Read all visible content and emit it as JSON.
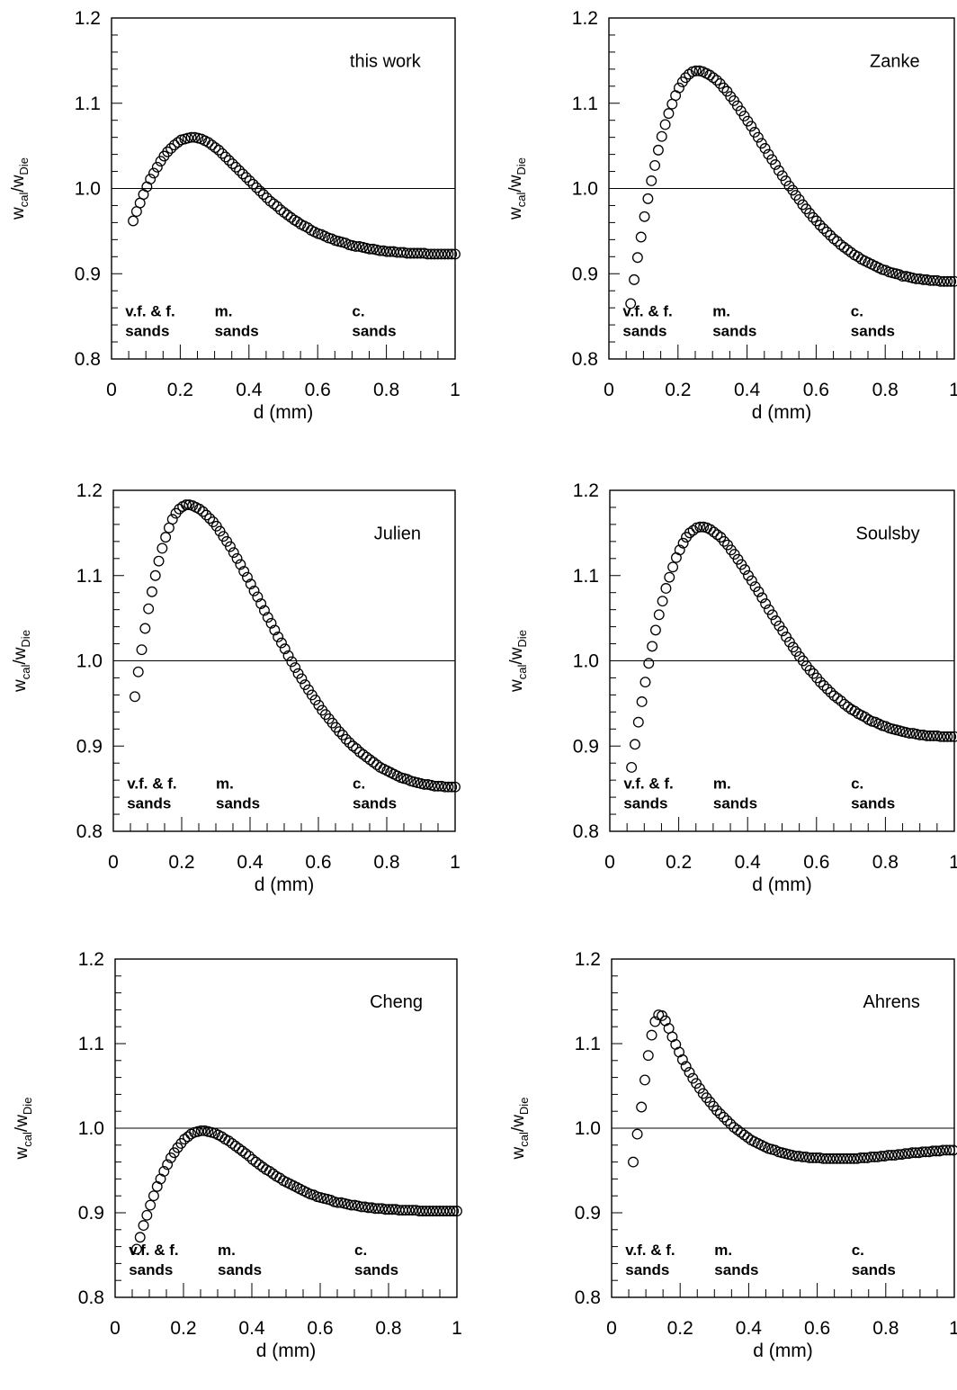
{
  "chart_data": [
    {
      "type": "scatter",
      "title": "this work",
      "xlabel": "d (mm)",
      "ylabel": {
        "base": "w",
        "sub1": "cal",
        "sep": "/w",
        "sub2": "Die"
      },
      "xlim": [
        0,
        1
      ],
      "ylim": [
        0.8,
        1.2
      ],
      "xticks": [
        "0",
        "0.2",
        "0.4",
        "0.6",
        "0.8",
        "1"
      ],
      "yticks": [
        "0.8",
        "0.9",
        "1.0",
        "1.1",
        "1.2"
      ],
      "reference_line_y": 1.0,
      "marker": "open-circle",
      "annotations": [
        {
          "lines": [
            "v.f. & f.",
            "sands"
          ],
          "x": 0.04,
          "y": 0.85
        },
        {
          "lines": [
            "m.",
            "sands"
          ],
          "x": 0.3,
          "y": 0.85
        },
        {
          "lines": [
            "c.",
            "sands"
          ],
          "x": 0.7,
          "y": 0.85
        }
      ],
      "curve": {
        "x0": 0.063,
        "y0": 0.962,
        "xp": 0.235,
        "yp": 1.06,
        "y1": 0.923,
        "k": 2.1
      }
    },
    {
      "type": "scatter",
      "title": "Zanke",
      "xlabel": "d (mm)",
      "ylabel": {
        "base": "w",
        "sub1": "cal",
        "sep": "/w",
        "sub2": "Die"
      },
      "xlim": [
        0,
        1
      ],
      "ylim": [
        0.8,
        1.2
      ],
      "xticks": [
        "0",
        "0.2",
        "0.4",
        "0.6",
        "0.8",
        "1"
      ],
      "yticks": [
        "0.8",
        "0.9",
        "1.0",
        "1.1",
        "1.2"
      ],
      "reference_line_y": 1.0,
      "marker": "open-circle",
      "annotations": [
        {
          "lines": [
            "v.f. & f.",
            "sands"
          ],
          "x": 0.04,
          "y": 0.85
        },
        {
          "lines": [
            "m.",
            "sands"
          ],
          "x": 0.3,
          "y": 0.85
        },
        {
          "lines": [
            "c.",
            "sands"
          ],
          "x": 0.7,
          "y": 0.85
        }
      ],
      "curve": {
        "x0": 0.063,
        "y0": 0.865,
        "xp": 0.255,
        "yp": 1.138,
        "y1": 0.891,
        "k": 1.45
      }
    },
    {
      "type": "scatter",
      "title": "Julien",
      "xlabel": "d (mm)",
      "ylabel": {
        "base": "w",
        "sub1": "cal",
        "sep": "/w",
        "sub2": "Die"
      },
      "xlim": [
        0,
        1
      ],
      "ylim": [
        0.8,
        1.2
      ],
      "xticks": [
        "0",
        "0.2",
        "0.4",
        "0.6",
        "0.8",
        "1"
      ],
      "yticks": [
        "0.8",
        "0.9",
        "1.0",
        "1.1",
        "1.2"
      ],
      "reference_line_y": 1.0,
      "marker": "open-circle",
      "annotations": [
        {
          "lines": [
            "v.f. & f.",
            "sands"
          ],
          "x": 0.04,
          "y": 0.85
        },
        {
          "lines": [
            "m.",
            "sands"
          ],
          "x": 0.3,
          "y": 0.85
        },
        {
          "lines": [
            "c.",
            "sands"
          ],
          "x": 0.7,
          "y": 0.85
        }
      ],
      "curve": {
        "x0": 0.063,
        "y0": 0.958,
        "xp": 0.215,
        "yp": 1.183,
        "y1": 0.852,
        "k": 1.2
      }
    },
    {
      "type": "scatter",
      "title": "Soulsby",
      "xlabel": "d (mm)",
      "ylabel": {
        "base": "w",
        "sub1": "cal",
        "sep": "/w",
        "sub2": "Die"
      },
      "xlim": [
        0,
        1
      ],
      "ylim": [
        0.8,
        1.2
      ],
      "xticks": [
        "0",
        "0.2",
        "0.4",
        "0.6",
        "0.8",
        "1"
      ],
      "yticks": [
        "0.8",
        "0.9",
        "1.0",
        "1.1",
        "1.2"
      ],
      "reference_line_y": 1.0,
      "marker": "open-circle",
      "annotations": [
        {
          "lines": [
            "v.f. & f.",
            "sands"
          ],
          "x": 0.04,
          "y": 0.85
        },
        {
          "lines": [
            "m.",
            "sands"
          ],
          "x": 0.3,
          "y": 0.85
        },
        {
          "lines": [
            "c.",
            "sands"
          ],
          "x": 0.7,
          "y": 0.85
        }
      ],
      "curve": {
        "x0": 0.063,
        "y0": 0.875,
        "xp": 0.265,
        "yp": 1.157,
        "y1": 0.911,
        "k": 1.55
      }
    },
    {
      "type": "scatter",
      "title": "Cheng",
      "xlabel": "d (mm)",
      "ylabel": {
        "base": "w",
        "sub1": "cal",
        "sep": "/w",
        "sub2": "Die"
      },
      "xlim": [
        0,
        1
      ],
      "ylim": [
        0.8,
        1.2
      ],
      "xticks": [
        "0",
        "0.2",
        "0.4",
        "0.6",
        "0.8",
        "1"
      ],
      "yticks": [
        "0.8",
        "0.9",
        "1.0",
        "1.1",
        "1.2"
      ],
      "reference_line_y": 1.0,
      "marker": "open-circle",
      "annotations": [
        {
          "lines": [
            "v.f. & f.",
            "sands"
          ],
          "x": 0.04,
          "y": 0.85
        },
        {
          "lines": [
            "m.",
            "sands"
          ],
          "x": 0.3,
          "y": 0.85
        },
        {
          "lines": [
            "c.",
            "sands"
          ],
          "x": 0.7,
          "y": 0.85
        }
      ],
      "curve": {
        "x0": 0.063,
        "y0": 0.857,
        "xp": 0.255,
        "yp": 0.997,
        "y1": 0.902,
        "k": 2.3
      }
    },
    {
      "type": "scatter",
      "title": "Ahrens",
      "xlabel": "d (mm)",
      "ylabel": {
        "base": "w",
        "sub1": "cal",
        "sep": "/w",
        "sub2": "Die"
      },
      "xlim": [
        0,
        1
      ],
      "ylim": [
        0.8,
        1.2
      ],
      "xticks": [
        "0",
        "0.2",
        "0.4",
        "0.6",
        "0.8",
        "1"
      ],
      "yticks": [
        "0.8",
        "0.9",
        "1.0",
        "1.1",
        "1.2"
      ],
      "reference_line_y": 1.0,
      "marker": "open-circle",
      "annotations": [
        {
          "lines": [
            "v.f. & f.",
            "sands"
          ],
          "x": 0.04,
          "y": 0.85
        },
        {
          "lines": [
            "m.",
            "sands"
          ],
          "x": 0.3,
          "y": 0.85
        },
        {
          "lines": [
            "c.",
            "sands"
          ],
          "x": 0.7,
          "y": 0.85
        }
      ],
      "points": [
        [
          0.063,
          0.96
        ],
        [
          0.075,
          0.993
        ],
        [
          0.087,
          1.025
        ],
        [
          0.097,
          1.057
        ],
        [
          0.107,
          1.086
        ],
        [
          0.117,
          1.11
        ],
        [
          0.127,
          1.126
        ],
        [
          0.137,
          1.134
        ],
        [
          0.147,
          1.133
        ],
        [
          0.157,
          1.127
        ],
        [
          0.167,
          1.118
        ],
        [
          0.177,
          1.108
        ],
        [
          0.187,
          1.099
        ],
        [
          0.197,
          1.09
        ],
        [
          0.207,
          1.081
        ],
        [
          0.217,
          1.073
        ],
        [
          0.227,
          1.066
        ],
        [
          0.237,
          1.059
        ],
        [
          0.247,
          1.053
        ],
        [
          0.257,
          1.047
        ],
        [
          0.267,
          1.041
        ],
        [
          0.277,
          1.036
        ],
        [
          0.287,
          1.031
        ],
        [
          0.297,
          1.026
        ],
        [
          0.307,
          1.021
        ],
        [
          0.317,
          1.017
        ],
        [
          0.327,
          1.013
        ],
        [
          0.337,
          1.009
        ],
        [
          0.347,
          1.005
        ],
        [
          0.357,
          1.001
        ],
        [
          0.367,
          0.998
        ],
        [
          0.377,
          0.995
        ],
        [
          0.387,
          0.992
        ],
        [
          0.397,
          0.989
        ],
        [
          0.407,
          0.986
        ],
        [
          0.417,
          0.984
        ],
        [
          0.427,
          0.982
        ],
        [
          0.437,
          0.98
        ],
        [
          0.447,
          0.978
        ],
        [
          0.457,
          0.976
        ],
        [
          0.467,
          0.975
        ],
        [
          0.477,
          0.974
        ],
        [
          0.487,
          0.972
        ],
        [
          0.497,
          0.971
        ],
        [
          0.507,
          0.97
        ],
        [
          0.517,
          0.969
        ],
        [
          0.527,
          0.968
        ],
        [
          0.537,
          0.967
        ],
        [
          0.547,
          0.967
        ],
        [
          0.557,
          0.966
        ],
        [
          0.567,
          0.966
        ],
        [
          0.577,
          0.965
        ],
        [
          0.587,
          0.965
        ],
        [
          0.597,
          0.965
        ],
        [
          0.607,
          0.965
        ],
        [
          0.617,
          0.964
        ],
        [
          0.627,
          0.964
        ],
        [
          0.637,
          0.964
        ],
        [
          0.647,
          0.964
        ],
        [
          0.657,
          0.964
        ],
        [
          0.667,
          0.964
        ],
        [
          0.677,
          0.964
        ],
        [
          0.687,
          0.964
        ],
        [
          0.697,
          0.964
        ],
        [
          0.707,
          0.964
        ],
        [
          0.717,
          0.964
        ],
        [
          0.727,
          0.965
        ],
        [
          0.737,
          0.965
        ],
        [
          0.747,
          0.965
        ],
        [
          0.757,
          0.966
        ],
        [
          0.767,
          0.966
        ],
        [
          0.777,
          0.966
        ],
        [
          0.787,
          0.967
        ],
        [
          0.797,
          0.967
        ],
        [
          0.807,
          0.968
        ],
        [
          0.817,
          0.968
        ],
        [
          0.827,
          0.968
        ],
        [
          0.837,
          0.969
        ],
        [
          0.847,
          0.969
        ],
        [
          0.857,
          0.97
        ],
        [
          0.867,
          0.97
        ],
        [
          0.877,
          0.971
        ],
        [
          0.887,
          0.971
        ],
        [
          0.897,
          0.971
        ],
        [
          0.907,
          0.972
        ],
        [
          0.917,
          0.972
        ],
        [
          0.927,
          0.972
        ],
        [
          0.937,
          0.973
        ],
        [
          0.947,
          0.973
        ],
        [
          0.957,
          0.973
        ],
        [
          0.967,
          0.974
        ],
        [
          0.977,
          0.974
        ],
        [
          0.987,
          0.974
        ],
        [
          0.997,
          0.974
        ]
      ]
    }
  ]
}
